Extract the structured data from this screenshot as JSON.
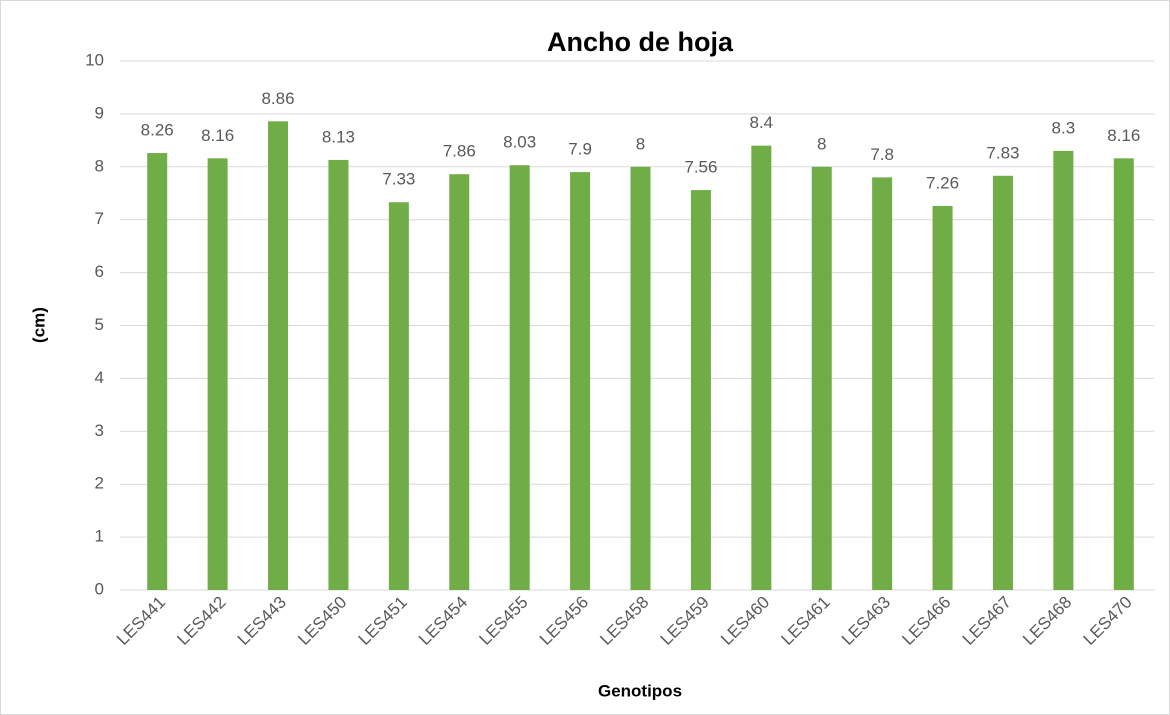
{
  "chart_data": {
    "type": "bar",
    "title": "Ancho de hoja",
    "x_label": "Genotipos",
    "y_label": "(cm)",
    "categories": [
      "LES441",
      "LES442",
      "LES443",
      "LES450",
      "LES451",
      "LES454",
      "LES455",
      "LES456",
      "LES458",
      "LES459",
      "LES460",
      "LES461",
      "LES463",
      "LES466",
      "LES467",
      "LES468",
      "LES470"
    ],
    "values": [
      8.26,
      8.16,
      8.86,
      8.13,
      7.33,
      7.86,
      8.03,
      7.9,
      8,
      7.56,
      8.4,
      8,
      7.8,
      7.26,
      7.83,
      8.3,
      8.16
    ],
    "color": "#70ad47",
    "ylim": [
      0,
      10
    ],
    "yticks": [
      0,
      1,
      2,
      3,
      4,
      5,
      6,
      7,
      8,
      9,
      10
    ],
    "grid": true
  }
}
